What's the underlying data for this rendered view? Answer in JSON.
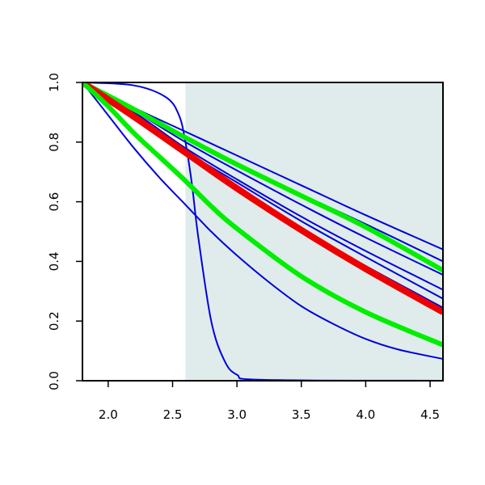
{
  "chart_data": {
    "type": "line",
    "title": "",
    "xlabel": "",
    "ylabel": "",
    "xlim": [
      1.8,
      4.6
    ],
    "ylim": [
      0.0,
      1.0
    ],
    "xticks": [
      "2.0",
      "2.5",
      "3.0",
      "3.5",
      "4.0",
      "4.5"
    ],
    "yticks": [
      "0.0",
      "0.2",
      "0.4",
      "0.6",
      "0.8",
      "1.0"
    ],
    "grid": false,
    "legend": "none",
    "shaded_region": {
      "x_from": 2.6,
      "x_to": 4.6,
      "color": "#dfeceb"
    },
    "series": [
      {
        "color": "#0000dd",
        "width": 2,
        "x": [
          1.8,
          2.2,
          2.45,
          2.55,
          2.6,
          2.65,
          2.7,
          2.8,
          2.9,
          3.0,
          3.2,
          4.6
        ],
        "y": [
          1.0,
          0.99,
          0.95,
          0.89,
          0.8,
          0.66,
          0.48,
          0.2,
          0.07,
          0.02,
          0.003,
          0.0
        ]
      },
      {
        "color": "#0000dd",
        "width": 2,
        "x": [
          1.8,
          2.0,
          2.2,
          2.4,
          2.6,
          2.8,
          3.0,
          3.25,
          3.5,
          3.75,
          4.0,
          4.25,
          4.6
        ],
        "y": [
          1.0,
          0.89,
          0.78,
          0.68,
          0.59,
          0.5,
          0.42,
          0.33,
          0.25,
          0.19,
          0.14,
          0.105,
          0.073
        ]
      },
      {
        "color": "#0000dd",
        "width": 2,
        "x": [
          1.8,
          2.2,
          2.6,
          3.0,
          3.5,
          4.0,
          4.6
        ],
        "y": [
          1.0,
          0.915,
          0.835,
          0.755,
          0.655,
          0.555,
          0.44
        ]
      },
      {
        "color": "#0000dd",
        "width": 2,
        "x": [
          1.8,
          2.2,
          2.6,
          3.0,
          3.5,
          4.0,
          4.6
        ],
        "y": [
          1.0,
          0.91,
          0.82,
          0.73,
          0.625,
          0.525,
          0.4
        ]
      },
      {
        "color": "#0000dd",
        "width": 2,
        "x": [
          1.8,
          2.2,
          2.6,
          3.0,
          3.5,
          4.0,
          4.6
        ],
        "y": [
          1.0,
          0.905,
          0.8,
          0.705,
          0.59,
          0.48,
          0.355
        ]
      },
      {
        "color": "#0000dd",
        "width": 2,
        "x": [
          1.8,
          2.2,
          2.6,
          3.0,
          3.5,
          4.0,
          4.6
        ],
        "y": [
          1.0,
          0.9,
          0.78,
          0.675,
          0.55,
          0.435,
          0.305
        ]
      },
      {
        "color": "#0000dd",
        "width": 2,
        "x": [
          1.8,
          2.2,
          2.6,
          3.0,
          3.5,
          4.0,
          4.6
        ],
        "y": [
          1.0,
          0.895,
          0.77,
          0.665,
          0.535,
          0.415,
          0.275
        ]
      },
      {
        "color": "#0000dd",
        "width": 2,
        "x": [
          1.8,
          2.2,
          2.6,
          3.0,
          3.5,
          4.0,
          4.6
        ],
        "y": [
          1.0,
          0.89,
          0.765,
          0.65,
          0.51,
          0.385,
          0.245
        ]
      },
      {
        "color": "#00ee00",
        "width": 6,
        "x": [
          1.8,
          2.2,
          2.6,
          3.0,
          3.5,
          4.0,
          4.6
        ],
        "y": [
          1.0,
          0.91,
          0.815,
          0.725,
          0.62,
          0.515,
          0.37
        ]
      },
      {
        "color": "#ee0000",
        "width": 8,
        "x": [
          1.8,
          2.2,
          2.6,
          3.0,
          3.5,
          4.0,
          4.6
        ],
        "y": [
          1.0,
          0.885,
          0.765,
          0.645,
          0.505,
          0.375,
          0.23
        ]
      },
      {
        "color": "#00ee00",
        "width": 6,
        "x": [
          1.8,
          2.0,
          2.2,
          2.4,
          2.6,
          2.8,
          3.0,
          3.5,
          4.0,
          4.6
        ],
        "y": [
          1.0,
          0.92,
          0.83,
          0.75,
          0.67,
          0.585,
          0.51,
          0.35,
          0.23,
          0.12
        ]
      }
    ]
  }
}
